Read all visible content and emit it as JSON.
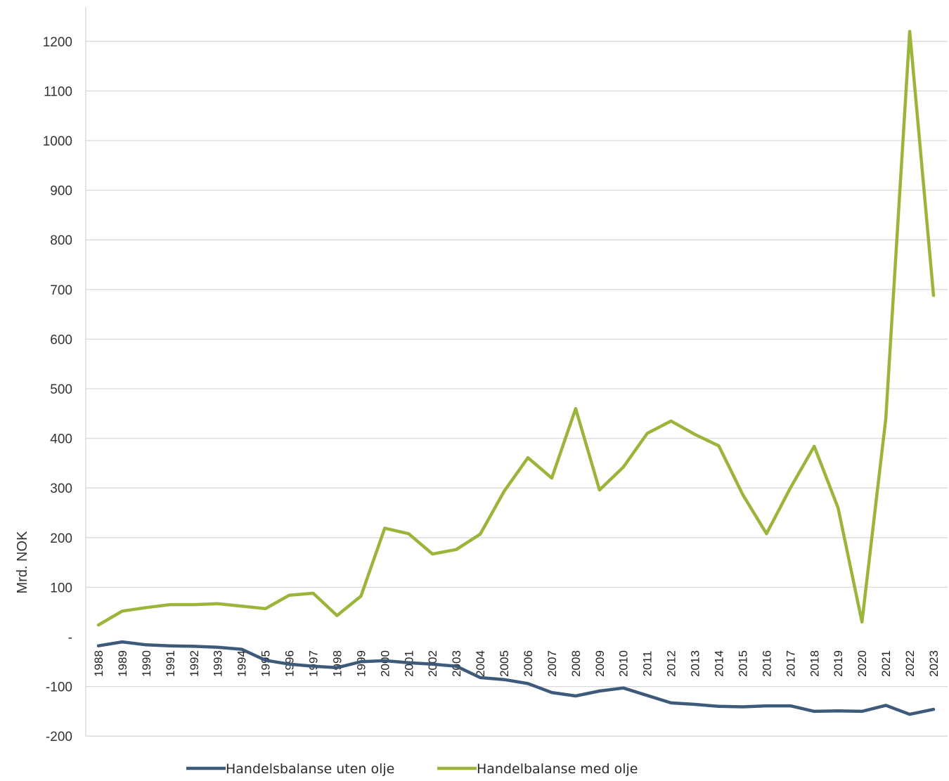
{
  "chart_data": {
    "type": "line",
    "title": "",
    "xlabel": "",
    "ylabel": "Mrd. NOK",
    "ylim": [
      -200,
      1250
    ],
    "yticks": [
      -200,
      -100,
      0,
      100,
      200,
      300,
      400,
      500,
      600,
      700,
      800,
      900,
      1000,
      1100,
      1200
    ],
    "ytick_labels": [
      "-200",
      "-100",
      "-",
      "100",
      "200",
      "300",
      "400",
      "500",
      "600",
      "700",
      "800",
      "900",
      "1000",
      "1100",
      "1200"
    ],
    "grid": true,
    "legend_position": "bottom",
    "categories": [
      "1988",
      "1989",
      "1990",
      "1991",
      "1992",
      "1993",
      "1994",
      "1995",
      "1996",
      "1997",
      "1998",
      "1999",
      "2000",
      "2001",
      "2002",
      "2003",
      "2004",
      "2005",
      "2006",
      "2007",
      "2008",
      "2009",
      "2010",
      "2011",
      "2012",
      "2013",
      "2014",
      "2015",
      "2016",
      "2017",
      "2018",
      "2019",
      "2020",
      "2021",
      "2022",
      "2023"
    ],
    "series": [
      {
        "name": "Handelsbalanse uten olje",
        "color": "#3d5a7a",
        "values": [
          -18,
          -10,
          -16,
          -18,
          -19,
          -21,
          -25,
          -47,
          -55,
          -59,
          -62,
          -50,
          -48,
          -52,
          -55,
          -59,
          -82,
          -86,
          -94,
          -112,
          -119,
          -109,
          -103,
          -118,
          -133,
          -136,
          -140,
          -141,
          -139,
          -139,
          -150,
          -149,
          -150,
          -138,
          -156,
          -146
        ]
      },
      {
        "name": "Handelbalanse med olje",
        "color": "#9bb53b",
        "values": [
          24,
          52,
          59,
          65,
          65,
          67,
          62,
          57,
          84,
          88,
          43,
          82,
          219,
          208,
          167,
          176,
          207,
          293,
          361,
          320,
          460,
          296,
          342,
          410,
          435,
          408,
          385,
          287,
          208,
          300,
          384,
          260,
          30,
          440,
          1220,
          688
        ]
      }
    ]
  }
}
